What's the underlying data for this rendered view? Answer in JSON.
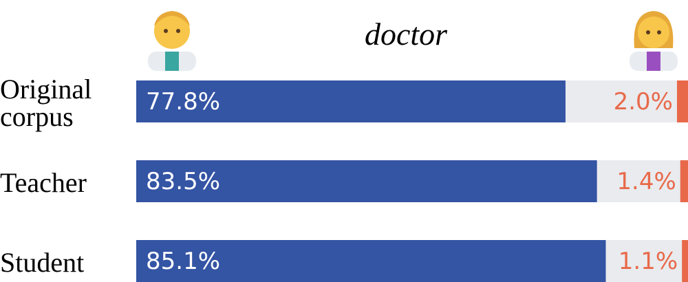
{
  "chart_data": {
    "type": "diverging-bar",
    "title": "doctor",
    "categories": [
      "Original corpus",
      "Teacher",
      "Student"
    ],
    "xlim": [
      0,
      100
    ],
    "series": [
      {
        "name": "male",
        "color": "#3454a4",
        "values": [
          77.8,
          83.5,
          85.1
        ],
        "value_labels": [
          "77.8%",
          "83.5%",
          "85.1%"
        ]
      },
      {
        "name": "female",
        "color": "#e8694a",
        "values": [
          2.0,
          1.4,
          1.1
        ],
        "value_labels": [
          "2.0%",
          "1.4%",
          "1.1%"
        ]
      }
    ]
  }
}
